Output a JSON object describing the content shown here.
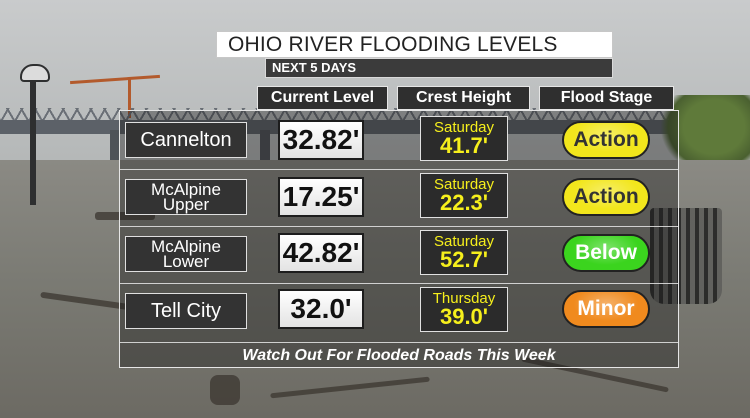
{
  "title": "OHIO RIVER FLOODING LEVELS",
  "subtitle": "NEXT 5 DAYS",
  "columns": {
    "current": "Current Level",
    "crest": "Crest Height",
    "stage": "Flood Stage"
  },
  "rows": [
    {
      "city_line1": "Cannelton",
      "city_line2": "",
      "current": "32.82'",
      "crest_day": "Saturday",
      "crest_value": "41.7'",
      "stage": "Action",
      "stage_color": "#f2e61c",
      "stage_text_color": "#333333"
    },
    {
      "city_line1": "McAlpine",
      "city_line2": "Upper",
      "current": "17.25'",
      "crest_day": "Saturday",
      "crest_value": "22.3'",
      "stage": "Action",
      "stage_color": "#f2e61c",
      "stage_text_color": "#333333"
    },
    {
      "city_line1": "McAlpine",
      "city_line2": "Lower",
      "current": "42.82'",
      "crest_day": "Saturday",
      "crest_value": "52.7'",
      "stage": "Below",
      "stage_color": "#3bd41e",
      "stage_text_color": "#ffffff"
    },
    {
      "city_line1": "Tell City",
      "city_line2": "",
      "current": "32.0'",
      "crest_day": "Thursday",
      "crest_value": "39.0'",
      "stage": "Minor",
      "stage_color": "#f08a1e",
      "stage_text_color": "#ffffff"
    }
  ],
  "footer": "Watch Out For Flooded Roads This Week",
  "colors": {
    "crest_text": "#f6ef1c",
    "header_bg": "#2f2f2f"
  }
}
